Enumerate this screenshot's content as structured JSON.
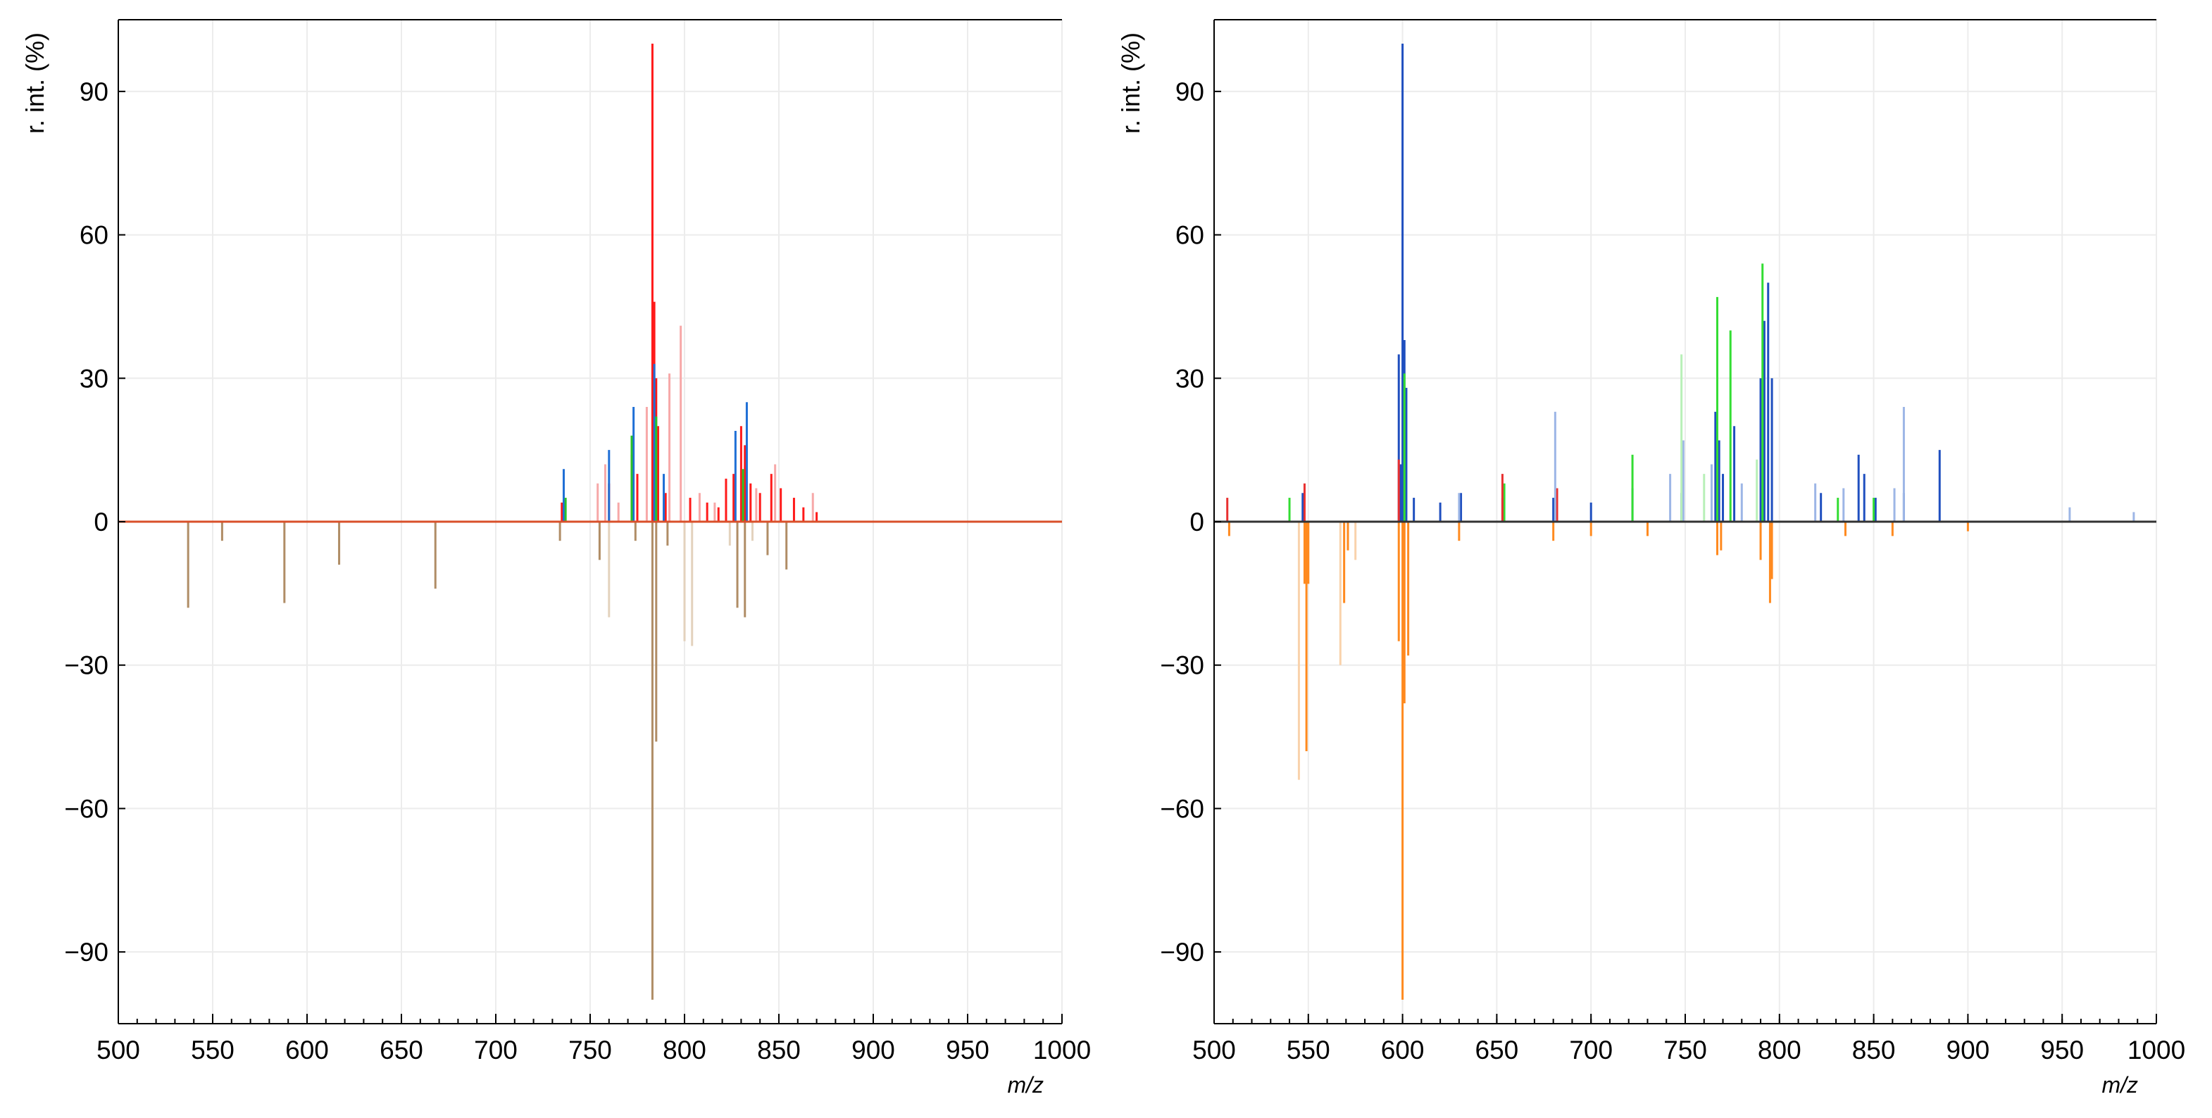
{
  "chart_data": [
    {
      "type": "bar",
      "panel": "left",
      "title": "",
      "xlabel": "m/z",
      "ylabel": "r. int. (%)",
      "xlim": [
        500,
        1000
      ],
      "ylim": [
        -105,
        105
      ],
      "x_ticks": [
        500,
        550,
        600,
        650,
        700,
        750,
        800,
        850,
        900,
        950,
        1000
      ],
      "y_ticks": [
        90,
        60,
        30,
        0,
        -30,
        -60,
        -90
      ],
      "grid": true,
      "legend": "none",
      "series": [
        {
          "name": "upper-red",
          "color": "#ff1a1a",
          "x": [
            735,
            760,
            772,
            775,
            783,
            784,
            785,
            786,
            790,
            803,
            812,
            818,
            822,
            826,
            830,
            832,
            835,
            840,
            846,
            851,
            858,
            863,
            870
          ],
          "values": [
            4,
            8,
            14,
            10,
            100,
            46,
            30,
            20,
            6,
            5,
            4,
            3,
            9,
            10,
            20,
            16,
            8,
            6,
            10,
            7,
            5,
            3,
            2
          ]
        },
        {
          "name": "upper-blue",
          "color": "#1f6fd6",
          "x": [
            736,
            760,
            773,
            784,
            789,
            827,
            833
          ],
          "values": [
            11,
            15,
            24,
            33,
            10,
            19,
            25
          ]
        },
        {
          "name": "upper-green",
          "color": "#29c229",
          "x": [
            737,
            772,
            785,
            831
          ],
          "values": [
            5,
            18,
            22,
            11
          ]
        },
        {
          "name": "upper-light-red",
          "color": "#f7a8a8",
          "x": [
            754,
            758,
            765,
            780,
            792,
            798,
            808,
            816,
            838,
            848,
            868
          ],
          "values": [
            8,
            12,
            4,
            24,
            31,
            41,
            6,
            4,
            7,
            12,
            6
          ]
        },
        {
          "name": "lower-tan",
          "color": "#b08d66",
          "x": [
            537,
            555,
            588,
            617,
            668,
            734,
            755,
            774,
            783,
            785,
            791,
            828,
            832,
            844,
            854
          ],
          "values": [
            -18,
            -4,
            -17,
            -9,
            -14,
            -4,
            -8,
            -4,
            -100,
            -46,
            -5,
            -18,
            -20,
            -7,
            -10
          ]
        },
        {
          "name": "lower-light",
          "color": "#e3d2bd",
          "x": [
            760,
            800,
            804,
            824,
            836
          ],
          "values": [
            -20,
            -25,
            -26,
            -5,
            -4
          ]
        }
      ]
    },
    {
      "type": "bar",
      "panel": "right",
      "title": "",
      "xlabel": "m/z",
      "ylabel": "r. int. (%)",
      "xlim": [
        500,
        1000
      ],
      "ylim": [
        -105,
        105
      ],
      "x_ticks": [
        500,
        550,
        600,
        650,
        700,
        750,
        800,
        850,
        900,
        950,
        1000
      ],
      "y_ticks": [
        90,
        60,
        30,
        0,
        -30,
        -60,
        -90
      ],
      "grid": true,
      "legend": "none",
      "series": [
        {
          "name": "upper-blue",
          "color": "#1f4fbf",
          "x": [
            547,
            598,
            599,
            600,
            601,
            602,
            606,
            620,
            631,
            653,
            680,
            700,
            722,
            748,
            766,
            768,
            770,
            776,
            790,
            792,
            794,
            796,
            822,
            842,
            845,
            851,
            866,
            885
          ],
          "values": [
            6,
            35,
            12,
            100,
            38,
            28,
            5,
            4,
            6,
            5,
            5,
            4,
            7,
            6,
            23,
            17,
            10,
            20,
            30,
            42,
            50,
            30,
            6,
            14,
            10,
            5,
            6,
            15
          ]
        },
        {
          "name": "upper-green",
          "color": "#33dd33",
          "x": [
            540,
            601,
            654,
            722,
            767,
            774,
            791,
            831,
            850
          ],
          "values": [
            5,
            31,
            8,
            14,
            47,
            40,
            54,
            5,
            5
          ]
        },
        {
          "name": "upper-red",
          "color": "#e83030",
          "x": [
            507,
            548,
            598,
            653,
            682
          ],
          "values": [
            5,
            8,
            13,
            10,
            7
          ]
        },
        {
          "name": "upper-light-blue",
          "color": "#9db6e6",
          "x": [
            630,
            681,
            742,
            749,
            764,
            780,
            819,
            834,
            861,
            866,
            954,
            988
          ],
          "values": [
            6,
            23,
            10,
            17,
            12,
            8,
            8,
            7,
            7,
            24,
            3,
            2
          ]
        },
        {
          "name": "upper-light-green",
          "color": "#b8f0b8",
          "x": [
            748,
            760,
            788
          ],
          "values": [
            35,
            10,
            13
          ]
        },
        {
          "name": "lower-orange",
          "color": "#ff8a1f",
          "x": [
            508,
            548,
            549,
            550,
            569,
            571,
            598,
            600,
            601,
            603,
            630,
            680,
            700,
            730,
            767,
            769,
            790,
            795,
            796,
            835,
            860,
            900
          ],
          "values": [
            -3,
            -13,
            -48,
            -13,
            -17,
            -6,
            -25,
            -100,
            -38,
            -28,
            -4,
            -4,
            -3,
            -3,
            -7,
            -6,
            -8,
            -17,
            -12,
            -3,
            -3,
            -2
          ]
        },
        {
          "name": "lower-light-orange",
          "color": "#f9d2ab",
          "x": [
            545,
            567,
            575
          ],
          "values": [
            -54,
            -30,
            -8
          ]
        }
      ]
    }
  ]
}
